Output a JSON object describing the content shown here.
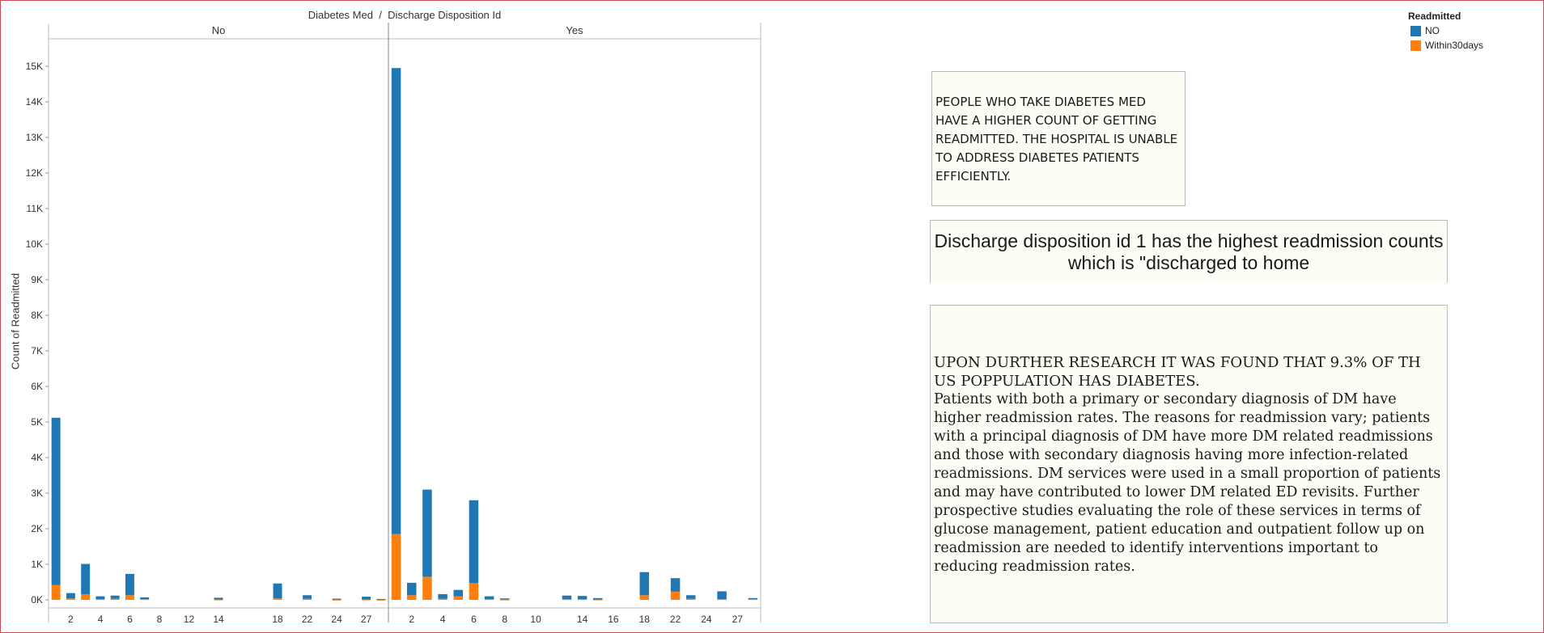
{
  "chart_data": {
    "type": "bar",
    "stacked": true,
    "title_left": "Diabetes Med",
    "title_sep": "/",
    "title_right": "Discharge Disposition Id",
    "ylabel": "Count of Readmitted",
    "ylim": [
      0,
      15500
    ],
    "yticks": [
      0,
      1000,
      2000,
      3000,
      4000,
      5000,
      6000,
      7000,
      8000,
      9000,
      10000,
      11000,
      12000,
      13000,
      14000,
      15000
    ],
    "ytick_labels": [
      "0K",
      "1K",
      "2K",
      "3K",
      "4K",
      "5K",
      "6K",
      "7K",
      "8K",
      "9K",
      "10K",
      "11K",
      "12K",
      "13K",
      "14K",
      "15K"
    ],
    "legend_title": "Readmitted",
    "series": [
      {
        "name": "NO",
        "color": "#1f77b4"
      },
      {
        "name": "Within30days",
        "color": "#ff7f0e"
      }
    ],
    "panes": [
      {
        "header": "No",
        "categories": [
          "1",
          "2",
          "3",
          "4",
          "5",
          "6",
          "7",
          "8",
          "10",
          "12",
          "13",
          "14",
          "15",
          "16",
          "17",
          "18",
          "19",
          "22",
          "23",
          "24",
          "25",
          "27",
          "28"
        ],
        "tick_labels": [
          "",
          "2",
          "",
          "4",
          "",
          "6",
          "",
          "8",
          "",
          "12",
          "",
          "14",
          "",
          "",
          "",
          "18",
          "",
          "22",
          "",
          "24",
          "",
          "27",
          ""
        ],
        "series": [
          {
            "name": "NO",
            "values": [
              4700,
              150,
              850,
              80,
              90,
              600,
              50,
              0,
              0,
              0,
              0,
              50,
              0,
              0,
              0,
              420,
              0,
              100,
              0,
              30,
              0,
              80,
              20
            ]
          },
          {
            "name": "Within30days",
            "values": [
              420,
              40,
              160,
              20,
              30,
              130,
              20,
              0,
              0,
              0,
              0,
              10,
              0,
              0,
              0,
              40,
              0,
              30,
              0,
              5,
              0,
              10,
              5
            ]
          }
        ]
      },
      {
        "header": "Yes",
        "categories": [
          "1",
          "2",
          "3",
          "4",
          "5",
          "6",
          "7",
          "8",
          "9",
          "10",
          "11",
          "13",
          "14",
          "15",
          "16",
          "17",
          "18",
          "19",
          "22",
          "23",
          "24",
          "25",
          "27",
          "28"
        ],
        "tick_labels": [
          "",
          "2",
          "",
          "4",
          "",
          "6",
          "",
          "8",
          "",
          "10",
          "",
          "",
          "14",
          "",
          "16",
          "",
          "18",
          "",
          "22",
          "",
          "24",
          "",
          "27",
          ""
        ],
        "series": [
          {
            "name": "NO",
            "values": [
              13100,
              350,
              2450,
              130,
              180,
              2330,
              80,
              30,
              0,
              0,
              0,
              100,
              90,
              40,
              0,
              0,
              650,
              0,
              380,
              100,
              0,
              220,
              0,
              30
            ]
          },
          {
            "name": "Within30days",
            "values": [
              1850,
              130,
              650,
              30,
              100,
              470,
              20,
              10,
              0,
              0,
              0,
              20,
              20,
              10,
              0,
              0,
              130,
              0,
              230,
              30,
              0,
              20,
              0,
              20
            ]
          }
        ]
      }
    ]
  },
  "notes": {
    "note1": "PEOPLE WHO TAKE DIABETES MED HAVE A HIGHER COUNT OF GETTING READMITTED. THE HOSPITAL IS UNABLE TO ADDRESS DIABETES PATIENTS EFFICIENTLY.",
    "note2": "Discharge disposition id 1 has the highest readmission counts which is \"discharged to home",
    "note3_upper": "UPON DURTHER RESEARCH IT WAS FOUND THAT 9.3% OF TH US POPPULATION HAS DIABETES.",
    "note3_body": "Patients with both a primary or secondary diagnosis of DM have higher readmission rates. The reasons for readmission vary; patients with a principal diagnosis of DM have more DM related readmissions and those with secondary diagnosis having more infection-related readmissions. DM services were used in a small proportion of patients and may have contributed to lower DM related ED revisits. Further prospective studies evaluating the role of these services in terms of glucose management, patient education and outpatient follow up on readmission are needed to identify interventions important to reducing readmission rates."
  }
}
